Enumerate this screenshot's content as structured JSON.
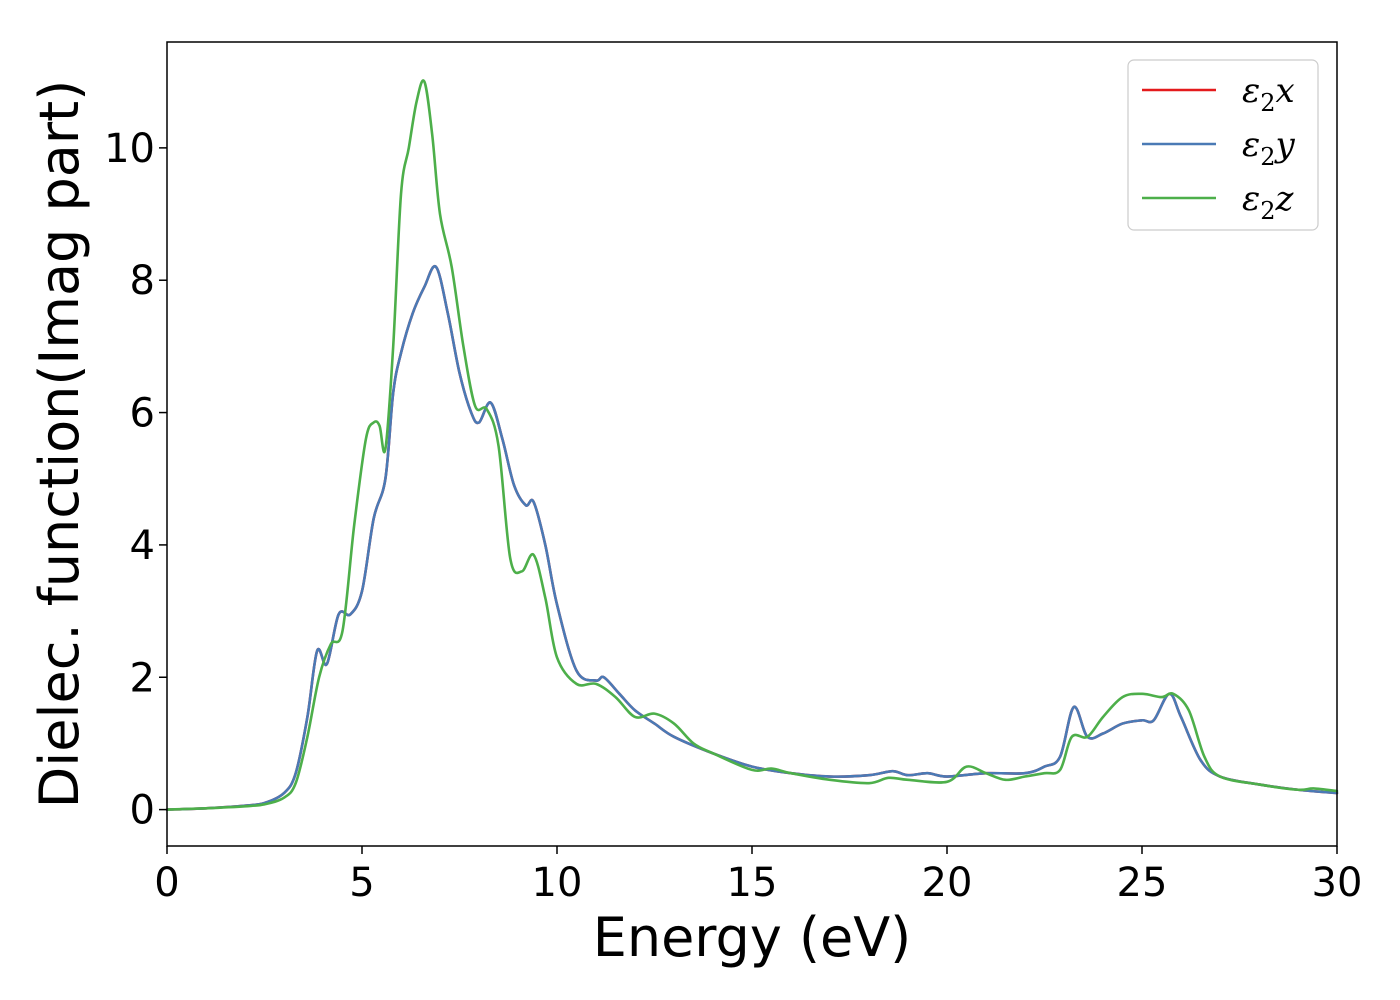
{
  "chart_data": {
    "type": "line",
    "title": "",
    "xlabel": "Energy (eV)",
    "ylabel": "Dielec. function(Imag part)",
    "xlim": [
      0,
      30
    ],
    "ylim": [
      -0.55,
      11.6
    ],
    "xticks": [
      0,
      5,
      10,
      15,
      20,
      25,
      30
    ],
    "yticks": [
      0,
      2,
      4,
      6,
      8,
      10
    ],
    "grid": false,
    "legend_position": "top-right",
    "series": [
      {
        "name": "ε2x",
        "legend_symbol": "ε",
        "legend_sub": "2",
        "legend_var": "x",
        "color": "#e41a1c",
        "x": [
          0,
          1,
          2,
          2.5,
          3.0,
          3.3,
          3.6,
          3.85,
          4.1,
          4.4,
          4.7,
          5.0,
          5.3,
          5.6,
          5.8,
          6.0,
          6.3,
          6.6,
          6.9,
          7.2,
          7.5,
          7.8,
          8.0,
          8.3,
          8.6,
          8.9,
          9.2,
          9.4,
          9.7,
          10.0,
          10.5,
          11.0,
          11.2,
          11.6,
          12.0,
          12.5,
          13.0,
          14.0,
          15.0,
          16.0,
          17.0,
          18.0,
          18.6,
          19.0,
          19.5,
          20.0,
          21.0,
          22.0,
          22.5,
          22.9,
          23.25,
          23.6,
          24.0,
          24.5,
          25.0,
          25.3,
          25.7,
          26.0,
          26.5,
          27.0,
          28.0,
          29.0,
          30.0
        ],
        "values": [
          0,
          0.02,
          0.06,
          0.1,
          0.25,
          0.55,
          1.4,
          2.4,
          2.2,
          2.95,
          2.95,
          3.3,
          4.4,
          5.0,
          6.3,
          6.9,
          7.5,
          7.9,
          8.2,
          7.5,
          6.6,
          6.0,
          5.85,
          6.15,
          5.6,
          4.9,
          4.6,
          4.65,
          4.0,
          3.1,
          2.1,
          1.95,
          2.0,
          1.75,
          1.5,
          1.3,
          1.1,
          0.85,
          0.65,
          0.55,
          0.5,
          0.52,
          0.58,
          0.52,
          0.55,
          0.5,
          0.55,
          0.55,
          0.65,
          0.8,
          1.55,
          1.1,
          1.15,
          1.3,
          1.35,
          1.35,
          1.75,
          1.4,
          0.75,
          0.5,
          0.38,
          0.3,
          0.25
        ]
      },
      {
        "name": "ε2y",
        "legend_symbol": "ε",
        "legend_sub": "2",
        "legend_var": "y",
        "color": "#4a7ab5",
        "x": [
          0,
          1,
          2,
          2.5,
          3.0,
          3.3,
          3.6,
          3.85,
          4.1,
          4.4,
          4.7,
          5.0,
          5.3,
          5.6,
          5.8,
          6.0,
          6.3,
          6.6,
          6.9,
          7.2,
          7.5,
          7.8,
          8.0,
          8.3,
          8.6,
          8.9,
          9.2,
          9.4,
          9.7,
          10.0,
          10.5,
          11.0,
          11.2,
          11.6,
          12.0,
          12.5,
          13.0,
          14.0,
          15.0,
          16.0,
          17.0,
          18.0,
          18.6,
          19.0,
          19.5,
          20.0,
          21.0,
          22.0,
          22.5,
          22.9,
          23.25,
          23.6,
          24.0,
          24.5,
          25.0,
          25.3,
          25.7,
          26.0,
          26.5,
          27.0,
          28.0,
          29.0,
          30.0
        ],
        "values": [
          0,
          0.02,
          0.06,
          0.1,
          0.25,
          0.55,
          1.4,
          2.4,
          2.2,
          2.95,
          2.95,
          3.3,
          4.4,
          5.0,
          6.3,
          6.9,
          7.5,
          7.9,
          8.2,
          7.5,
          6.6,
          6.0,
          5.85,
          6.15,
          5.6,
          4.9,
          4.6,
          4.65,
          4.0,
          3.1,
          2.1,
          1.95,
          2.0,
          1.75,
          1.5,
          1.3,
          1.1,
          0.85,
          0.65,
          0.55,
          0.5,
          0.52,
          0.58,
          0.52,
          0.55,
          0.5,
          0.55,
          0.55,
          0.65,
          0.8,
          1.55,
          1.1,
          1.15,
          1.3,
          1.35,
          1.35,
          1.75,
          1.4,
          0.75,
          0.5,
          0.38,
          0.3,
          0.25
        ]
      },
      {
        "name": "ε2z",
        "legend_symbol": "ε",
        "legend_sub": "2",
        "legend_var": "z",
        "color": "#4daf4a",
        "x": [
          0,
          1,
          2,
          2.5,
          3.0,
          3.3,
          3.6,
          3.9,
          4.2,
          4.5,
          4.8,
          5.1,
          5.3,
          5.45,
          5.6,
          5.8,
          6.0,
          6.2,
          6.4,
          6.6,
          6.8,
          7.0,
          7.3,
          7.6,
          7.9,
          8.2,
          8.5,
          8.8,
          9.1,
          9.4,
          9.7,
          10.0,
          10.5,
          11.0,
          11.5,
          12.0,
          12.5,
          13.0,
          13.5,
          14.0,
          15.0,
          15.5,
          16.0,
          17.0,
          18.0,
          18.5,
          19.0,
          20.0,
          20.5,
          21.0,
          21.5,
          22.0,
          22.5,
          22.9,
          23.2,
          23.6,
          24.0,
          24.5,
          25.0,
          25.5,
          25.8,
          26.2,
          26.6,
          27.0,
          28.0,
          29.0,
          29.4,
          30.0
        ],
        "values": [
          0,
          0.02,
          0.05,
          0.08,
          0.18,
          0.4,
          1.1,
          2.0,
          2.5,
          2.7,
          4.3,
          5.6,
          5.85,
          5.8,
          5.45,
          7.0,
          9.3,
          10.0,
          10.7,
          11.0,
          10.2,
          9.0,
          8.2,
          7.0,
          6.1,
          6.05,
          5.5,
          3.8,
          3.6,
          3.85,
          3.2,
          2.3,
          1.9,
          1.9,
          1.7,
          1.4,
          1.45,
          1.3,
          1.0,
          0.85,
          0.6,
          0.62,
          0.55,
          0.45,
          0.4,
          0.48,
          0.45,
          0.42,
          0.65,
          0.55,
          0.45,
          0.5,
          0.55,
          0.6,
          1.1,
          1.1,
          1.4,
          1.7,
          1.75,
          1.7,
          1.75,
          1.5,
          0.8,
          0.5,
          0.38,
          0.3,
          0.32,
          0.28
        ]
      }
    ]
  }
}
